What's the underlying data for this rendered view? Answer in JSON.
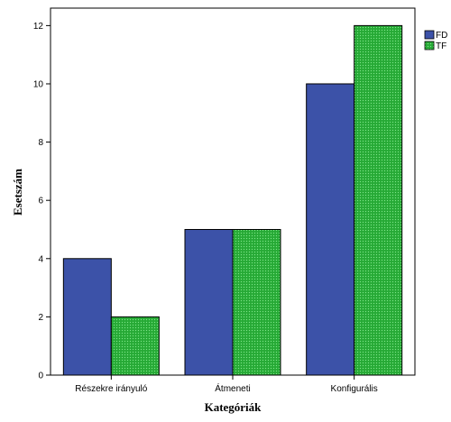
{
  "chart_data": {
    "type": "bar",
    "title": "",
    "xlabel": "Kategóriák",
    "ylabel": "Esetszám",
    "categories": [
      "Részekre irányuló",
      "Átmeneti",
      "Konfigurális"
    ],
    "series": [
      {
        "name": "FD",
        "values": [
          4,
          5,
          10
        ],
        "color": "#3c52a8",
        "pattern": "solid"
      },
      {
        "name": "TF",
        "values": [
          2,
          5,
          12
        ],
        "color": "#2bb03a",
        "pattern": "dotted"
      }
    ],
    "ylim": [
      0,
      12.6
    ],
    "yticks": [
      0,
      2,
      4,
      6,
      8,
      10,
      12
    ],
    "grid": false,
    "legend_position": "top-right",
    "background": "#ffffff",
    "plot_border": "#000000"
  }
}
